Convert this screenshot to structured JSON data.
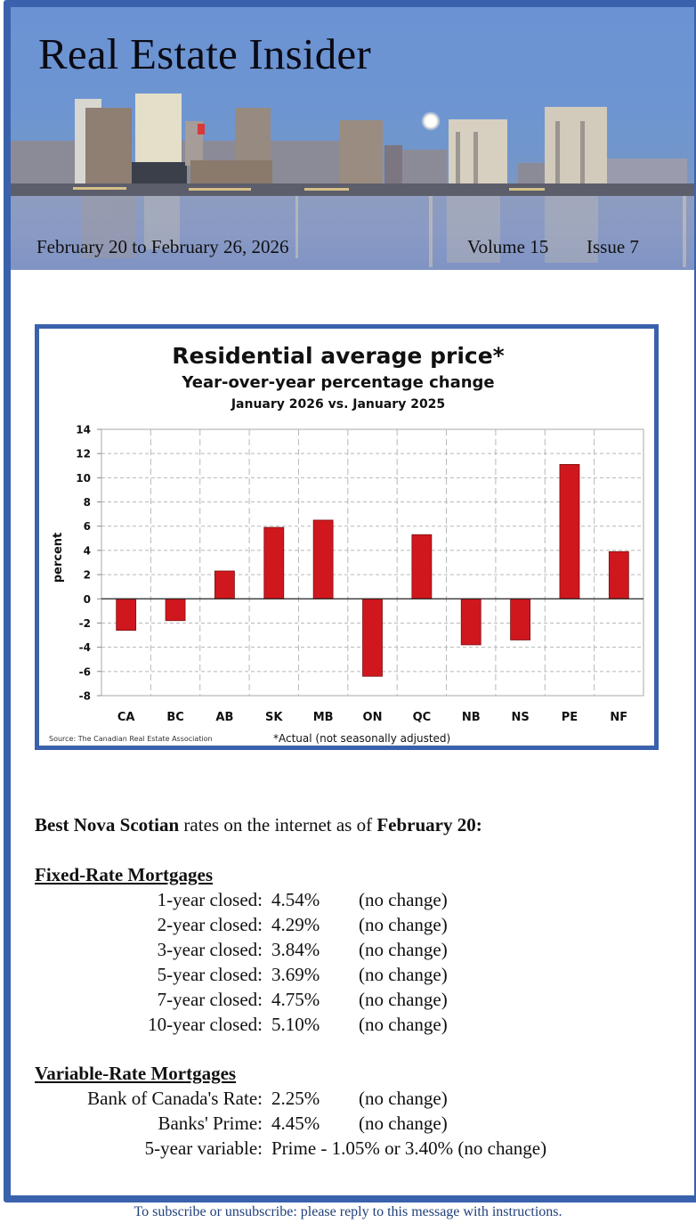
{
  "header": {
    "title": "Real Estate Insider",
    "date_range": "February 20 to February 26, 2026",
    "volume": "Volume 15",
    "issue": "Issue 7"
  },
  "colors": {
    "frame": "#3a62ac",
    "bar": "#d0171e",
    "bar_edge": "#7a1010",
    "footer_text": "#1f3f7a"
  },
  "chart_data": {
    "type": "bar",
    "title": "Residential average price*",
    "subtitle": "Year-over-year percentage change",
    "subtitle2": "January 2026 vs. January 2025",
    "xlabel": "",
    "ylabel": "percent",
    "categories": [
      "CA",
      "BC",
      "AB",
      "SK",
      "MB",
      "ON",
      "QC",
      "NB",
      "NS",
      "PE",
      "NF"
    ],
    "values": [
      -2.6,
      -1.8,
      2.3,
      5.9,
      6.5,
      -6.4,
      5.3,
      -3.8,
      -3.4,
      11.1,
      3.9
    ],
    "ylim": [
      -8,
      14
    ],
    "yticks": [
      14,
      12,
      10,
      8,
      6,
      4,
      2,
      0,
      -2,
      -4,
      -6,
      -8
    ],
    "grid": true,
    "legend": "none",
    "source": "Source: The Canadian Real Estate Association",
    "footnote": "*Actual (not seasonally adjusted)"
  },
  "rates": {
    "intro_bold1": "Best Nova Scotian",
    "intro_mid": " rates on the internet as of ",
    "intro_bold2": "February 20:",
    "fixed": {
      "heading": "Fixed-Rate Mortgages",
      "rows": [
        {
          "label": "1-year closed:",
          "rate": "4.54%",
          "change": "(no change)"
        },
        {
          "label": "2-year closed:",
          "rate": "4.29%",
          "change": "(no change)"
        },
        {
          "label": "3-year closed:",
          "rate": "3.84%",
          "change": "(no change)"
        },
        {
          "label": "5-year closed:",
          "rate": "3.69%",
          "change": "(no change)"
        },
        {
          "label": "7-year closed:",
          "rate": "4.75%",
          "change": "(no change)"
        },
        {
          "label": "10-year closed:",
          "rate": "5.10%",
          "change": "(no change)"
        }
      ]
    },
    "variable": {
      "heading": "Variable-Rate Mortgages",
      "rows": [
        {
          "label": "Bank of Canada's Rate:",
          "rate": "2.25%",
          "change": "(no change)"
        },
        {
          "label": "Banks' Prime:",
          "rate": "4.45%",
          "change": "(no change)"
        },
        {
          "label": "5-year variable:",
          "rate": "Prime - 1.05% or 3.40% (no change)",
          "change": ""
        }
      ]
    }
  },
  "footer": {
    "text": "To subscribe or unsubscribe: please reply to this message with instructions."
  }
}
